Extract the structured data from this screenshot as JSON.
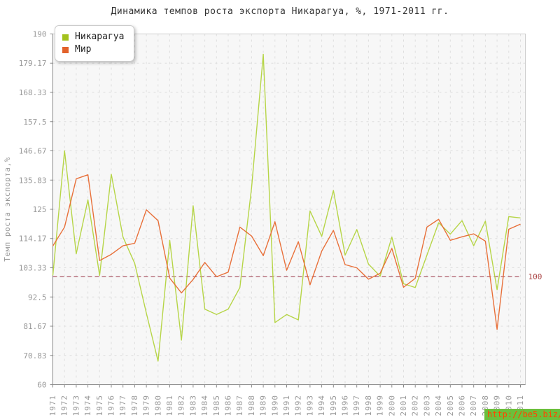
{
  "title": "Динамика темпов роста экспорта Никарагуа, %, 1971-2011 гг.",
  "watermark": {
    "text": "http://be5.biz/"
  },
  "colors": {
    "background": "#ffffff",
    "plot_bg": "#f7f7f7",
    "grid": "#dedede",
    "border": "#cccccc",
    "axis": "#888888",
    "tick": "#999999",
    "title_text": "#333333",
    "ref_line": "#993344",
    "ref_label": "#aa4444",
    "watermark_bg": "#6bbf3b",
    "watermark_text": "#ff4400"
  },
  "legend": {
    "items": [
      {
        "label": "Никарагуа",
        "color": "#a3c21d"
      },
      {
        "label": "Мир",
        "color": "#e2622b"
      }
    ]
  },
  "reference_line": {
    "value": 100,
    "label": "100"
  },
  "chart_data": {
    "type": "line",
    "title": "Динамика темпов роста экспорта Никарагуа, %, 1971-2011 гг.",
    "xlabel": "",
    "ylabel": "Темп роста экспорта,%",
    "ylim": [
      60,
      190
    ],
    "grid": true,
    "legend_position": "top-left",
    "reference_line": 100,
    "ytick_labels": [
      "190",
      "179.17",
      "168.33",
      "157.5",
      "146.67",
      "135.83",
      "125",
      "114.17",
      "103.33",
      "92.5",
      "81.67",
      "70.83",
      "60"
    ],
    "categories": [
      "1971",
      "1972",
      "1973",
      "1974",
      "1975",
      "1976",
      "1977",
      "1978",
      "1979",
      "1980",
      "1981",
      "1982",
      "1983",
      "1984",
      "1985",
      "1986",
      "1987",
      "1988",
      "1989",
      "1990",
      "1991",
      "1992",
      "1993",
      "1994",
      "1995",
      "1996",
      "1997",
      "1998",
      "1999",
      "2000",
      "2001",
      "2002",
      "2003",
      "2004",
      "2005",
      "2006",
      "2007",
      "2008",
      "2009",
      "2010",
      "2011"
    ],
    "series": [
      {
        "name": "Никарагуа",
        "color": "#b6d547",
        "values": [
          100.5,
          146.7,
          108.5,
          128.5,
          100.5,
          138,
          114.7,
          105,
          86.5,
          68.7,
          113.5,
          76.5,
          126.3,
          88,
          86,
          88,
          96,
          133,
          182.5,
          83,
          86,
          84,
          124.4,
          115,
          132,
          108,
          117.5,
          104.7,
          100.2,
          114.7,
          97.4,
          96,
          108,
          120,
          115.8,
          120.8,
          111.5,
          120.6,
          95.2,
          122.3,
          121.8
        ]
      },
      {
        "name": "Мир",
        "color": "#e8703a",
        "values": [
          111.4,
          118.4,
          136.3,
          137.8,
          106,
          108.3,
          111.5,
          112.4,
          124.8,
          120.8,
          99.5,
          94,
          99,
          105.3,
          100,
          101.7,
          118.4,
          115.1,
          107.8,
          120.4,
          102.4,
          113,
          97,
          109.5,
          117.2,
          104.5,
          103.3,
          99.1,
          101.3,
          110.5,
          96.1,
          99.4,
          118.4,
          121.3,
          113.5,
          114.8,
          115.9,
          113.2,
          80.5,
          117.6,
          119.5
        ]
      }
    ]
  }
}
